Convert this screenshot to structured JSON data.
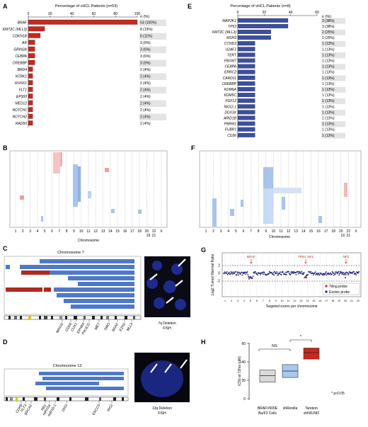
{
  "panels": {
    "A": {
      "letter": "A",
      "title": "Percentage of cHCL Patients (n=53)",
      "n_header": "n (%)",
      "axis_ticks": [
        "0",
        "20",
        "40",
        "60",
        "80",
        "100"
      ],
      "chart_data": {
        "type": "bar",
        "orientation": "horizontal",
        "title": "Percentage of cHCL Patients (n=53)",
        "categories": [
          "BRAF",
          "KMT2C (MLL3)",
          "CDKN1B",
          "AR",
          "GRIN2A",
          "CEBPA",
          "CREBBP",
          "BRD4",
          "NTRK1",
          "RUNX1",
          "FLT1",
          "EP300",
          "MED12",
          "NOTCH1",
          "NOTCH2",
          "RAD50"
        ],
        "values": [
          100,
          15,
          11,
          6,
          6,
          6,
          6,
          4,
          4,
          4,
          4,
          4,
          4,
          4,
          4,
          4
        ],
        "labels": [
          "53 (100%)",
          "8 (15%)",
          "6 (11%)",
          "3 (6%)",
          "3 (6%)",
          "3 (6%)",
          "3 (6%)",
          "2 (4%)",
          "2 (4%)",
          "2 (4%)",
          "2 (4%)",
          "2 (4%)",
          "2 (4%)",
          "2 (4%)",
          "2 (4%)",
          "2 (4%)"
        ],
        "xlim": [
          0,
          100
        ],
        "color": "#c8281e"
      }
    },
    "E": {
      "letter": "E",
      "title": "Percentage of vHCL Patients (n=8)",
      "n_header": "n (%)",
      "axis_ticks": [
        "0",
        "20",
        "40",
        "60"
      ],
      "chart_data": {
        "type": "bar",
        "orientation": "horizontal",
        "title": "Percentage of vHCL Patients (n=8)",
        "categories": [
          "MAP2K1",
          "TP53",
          "KMT2C (MLL3)",
          "MSH3",
          "CCND3",
          "U2AF1",
          "TERT",
          "FBXW7",
          "CEBPA",
          "ERRC2",
          "CARD11",
          "CREBBP",
          "KDM6A",
          "KDM5C",
          "FGF12",
          "NKX2-1",
          "DDX3X",
          "ARID1B",
          "PBRM1",
          "FUBP1",
          "CD36"
        ],
        "values": [
          38,
          38,
          25,
          25,
          13,
          13,
          13,
          13,
          13,
          13,
          13,
          13,
          13,
          13,
          13,
          13,
          13,
          13,
          13,
          13,
          13
        ],
        "labels": [
          "3 (38%)",
          "3 (38%)",
          "2 (25%)",
          "2 (25%)",
          "1 (13%)",
          "1 (13%)",
          "1 (13%)",
          "1 (13%)",
          "1 (13%)",
          "1 (13%)",
          "1 (13%)",
          "1 (13%)",
          "1 (13%)",
          "1 (13%)",
          "1 (13%)",
          "1 (13%)",
          "1 (13%)",
          "1 (13%)",
          "1 (13%)",
          "1 (13%)",
          "1 (13%)"
        ],
        "xlim": [
          0,
          60
        ],
        "color": "#3b4fa0"
      }
    },
    "B": {
      "letter": "B",
      "xlabel": "Chromosome",
      "ticks": [
        "1",
        "2",
        "3",
        "4",
        "5",
        "6",
        "7",
        "8",
        "9",
        "10",
        "11",
        "12",
        "13",
        "14",
        "15",
        "16",
        "17",
        "18",
        "20",
        "22",
        "X"
      ],
      "ticks_low": [
        "19",
        "21"
      ]
    },
    "F": {
      "letter": "F",
      "xlabel": "Chromosome",
      "ticks": [
        "1",
        "2",
        "3",
        "4",
        "5",
        "6",
        "7",
        "8",
        "9",
        "10",
        "11",
        "12",
        "13",
        "14",
        "15",
        "16",
        "17",
        "18",
        "20",
        "22",
        "X"
      ],
      "ticks_low": [
        "19",
        "21"
      ]
    },
    "C": {
      "letter": "C",
      "title": "Chromosome 7",
      "genes": [
        "MAGI2",
        "CDK6",
        "CUX1",
        "EPHB4",
        "PIK3CG",
        "MET",
        "SMO",
        "BRAF",
        "EZH2",
        "MLL3"
      ],
      "fish_label": "7q Deletion",
      "fish_sub": "FISH"
    },
    "D": {
      "letter": "D",
      "title": "Chromosome 13",
      "genes": [
        "CDK8",
        "FLT3",
        "BRCA2",
        "RB1",
        "miR15a",
        "miR16-1",
        "DIS3",
        "ERCC5",
        "IRS2"
      ],
      "fish_label": "13q Deletion",
      "fish_sub": "FISH"
    },
    "G": {
      "letter": "G",
      "ylabel": "Log2 Tumor/ Normal Ratio",
      "xlabel": "Targeted exons per chromosome",
      "annotations": [
        "BRAF",
        "TP53, NF1",
        "NF2"
      ],
      "legend": [
        "Tiling probe",
        "Exonic probe"
      ],
      "yticks": [
        "2",
        "0",
        "-2"
      ],
      "xticks": [
        "1",
        "2",
        "3",
        "4",
        "5",
        "6",
        "7",
        "8",
        "9",
        "10",
        "11",
        "12",
        "13",
        "14",
        "15",
        "16",
        "17",
        "18",
        "19",
        "20",
        "21",
        "22"
      ]
    },
    "H": {
      "letter": "H",
      "ylabel": "IC50 at 72hrs (µM)",
      "yticks": [
        "0",
        "20",
        "40",
        "60"
      ],
      "ns_label": "NS",
      "sig_label": "*",
      "pvalue": "* p<0.05",
      "cat_lines": [
        [
          "BRAFV600E",
          "Ba/F3 Cells"
        ],
        [
          "shRenilla",
          ""
        ],
        [
          "Tandem",
          "shNf1/Nf2"
        ]
      ],
      "chart_data": {
        "type": "box",
        "categories": [
          "BRAFV600E Ba/F3 Cells",
          "shRenilla",
          "Tandem shNf1/Nf2"
        ],
        "boxes": [
          {
            "low": 18,
            "median": 25,
            "high": 31
          },
          {
            "low": 23,
            "median": 30,
            "high": 37
          },
          {
            "low": 43,
            "median": 50,
            "high": 55
          }
        ],
        "colors": [
          "#d9d9d9",
          "#a9c8ee",
          "#c8281e"
        ],
        "ylim": [
          0,
          60
        ],
        "ylabel": "IC50 at 72hrs (µM)"
      }
    }
  }
}
